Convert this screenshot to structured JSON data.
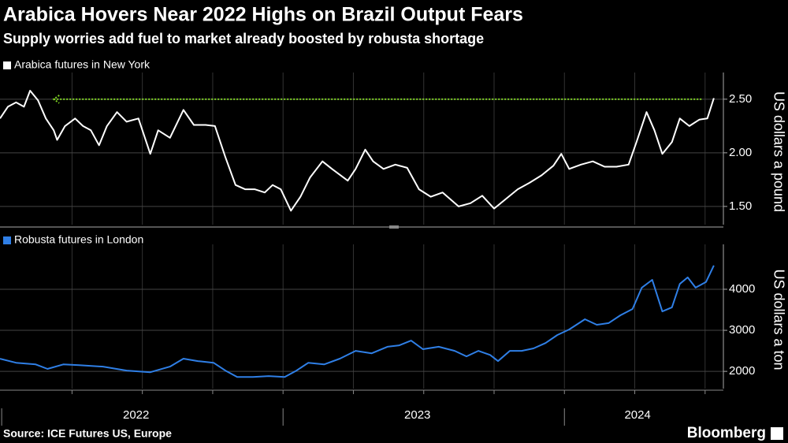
{
  "header": {
    "title": "Arabica Hovers Near 2022 Highs on Brazil Output Fears",
    "subtitle": "Supply worries add fuel to market already boosted by robusta shortage"
  },
  "footer": {
    "source": "Source: ICE Futures US, Europe",
    "brand": "Bloomberg"
  },
  "chart_data": [
    {
      "type": "line",
      "y_label": "US dollars a pound",
      "x": [
        2021.994,
        2022.022,
        2022.051,
        2022.079,
        2022.101,
        2022.129,
        2022.157,
        2022.185,
        2022.197,
        2022.225,
        2022.261,
        2022.289,
        2022.317,
        2022.346,
        2022.374,
        2022.41,
        2022.444,
        2022.486,
        2022.528,
        2022.556,
        2022.598,
        2022.646,
        2022.683,
        2022.725,
        2022.758,
        2022.795,
        2022.831,
        2022.865,
        2022.899,
        2022.935,
        2022.963,
        2022.992,
        2023.028,
        2023.062,
        2023.096,
        2023.14,
        2023.174,
        2023.23,
        2023.258,
        2023.292,
        2023.32,
        2023.357,
        2023.399,
        2023.441,
        2023.483,
        2023.525,
        2023.567,
        2023.624,
        2023.666,
        2023.708,
        2023.75,
        2023.792,
        2023.834,
        2023.876,
        2023.919,
        2023.961,
        2023.989,
        2024.017,
        2024.059,
        2024.101,
        2024.143,
        2024.185,
        2024.228,
        2024.256,
        2024.292,
        2024.32,
        2024.348,
        2024.382,
        2024.41,
        2024.444,
        2024.48,
        2024.508,
        2024.531
      ],
      "series": [
        {
          "name": "Arabica futures in New York",
          "color": "#ffffff",
          "values": [
            2.32,
            2.43,
            2.47,
            2.43,
            2.58,
            2.49,
            2.32,
            2.21,
            2.12,
            2.25,
            2.32,
            2.25,
            2.21,
            2.07,
            2.25,
            2.38,
            2.29,
            2.32,
            1.99,
            2.21,
            2.14,
            2.4,
            2.26,
            2.26,
            2.25,
            1.96,
            1.7,
            1.66,
            1.66,
            1.63,
            1.7,
            1.66,
            1.46,
            1.59,
            1.77,
            1.92,
            1.85,
            1.74,
            1.85,
            2.03,
            1.92,
            1.85,
            1.89,
            1.86,
            1.66,
            1.59,
            1.63,
            1.5,
            1.53,
            1.6,
            1.48,
            1.57,
            1.66,
            1.72,
            1.79,
            1.88,
            1.99,
            1.85,
            1.89,
            1.92,
            1.87,
            1.87,
            1.89,
            2.1,
            2.38,
            2.21,
            1.99,
            2.1,
            2.32,
            2.25,
            2.31,
            2.32,
            2.51
          ]
        }
      ],
      "reference_line": {
        "value": 2.5,
        "x": [
          2022.185,
          2024.492
        ],
        "color": "#7ed321"
      },
      "xlim": [
        2021.994,
        2024.565
      ],
      "xgrid": [
        2022.25,
        2022.5,
        2022.75,
        2023,
        2023.25,
        2023.5,
        2023.75,
        2024,
        2024.25,
        2024.5
      ],
      "ylim": [
        1.33,
        2.69
      ],
      "yticks": [
        {
          "value": 1.5,
          "label": "1.50"
        },
        {
          "value": 2,
          "label": "2.00"
        },
        {
          "value": 2.5,
          "label": "2.50"
        }
      ]
    },
    {
      "type": "line",
      "y_label": "US dollars a ton",
      "x": [
        2021.994,
        2022.051,
        2022.121,
        2022.163,
        2022.219,
        2022.275,
        2022.36,
        2022.444,
        2022.528,
        2022.598,
        2022.646,
        2022.697,
        2022.753,
        2022.795,
        2022.837,
        2022.893,
        2022.949,
        2023.006,
        2023.048,
        2023.09,
        2023.146,
        2023.202,
        2023.258,
        2023.315,
        2023.371,
        2023.413,
        2023.455,
        2023.497,
        2023.553,
        2023.61,
        2023.652,
        2023.694,
        2023.736,
        2023.764,
        2023.806,
        2023.848,
        2023.89,
        2023.933,
        2023.975,
        2024.017,
        2024.073,
        2024.115,
        2024.157,
        2024.199,
        2024.242,
        2024.275,
        2024.312,
        2024.348,
        2024.382,
        2024.41,
        2024.438,
        2024.466,
        2024.503,
        2024.531
      ],
      "series": [
        {
          "name": "Robusta futures in London",
          "color": "#2f7fe6",
          "values": [
            2308,
            2210,
            2170,
            2060,
            2170,
            2150,
            2115,
            2020,
            1980,
            2115,
            2310,
            2250,
            2210,
            2020,
            1865,
            1865,
            1885,
            1865,
            2020,
            2210,
            2170,
            2310,
            2500,
            2440,
            2600,
            2635,
            2750,
            2540,
            2600,
            2500,
            2365,
            2500,
            2400,
            2250,
            2500,
            2500,
            2560,
            2690,
            2885,
            3020,
            3270,
            3135,
            3175,
            3365,
            3520,
            4040,
            4230,
            3460,
            3560,
            4130,
            4290,
            4040,
            4175,
            4580
          ]
        }
      ],
      "xlim": [
        2021.994,
        2024.565
      ],
      "xticks": [
        2022,
        2023,
        2024
      ],
      "xgrid": [
        2022.25,
        2022.5,
        2022.75,
        2023,
        2023.25,
        2023.5,
        2023.75,
        2024,
        2024.25,
        2024.5
      ],
      "ylim": [
        1580,
        4940
      ],
      "yticks": [
        2000,
        3000,
        4000
      ]
    }
  ]
}
